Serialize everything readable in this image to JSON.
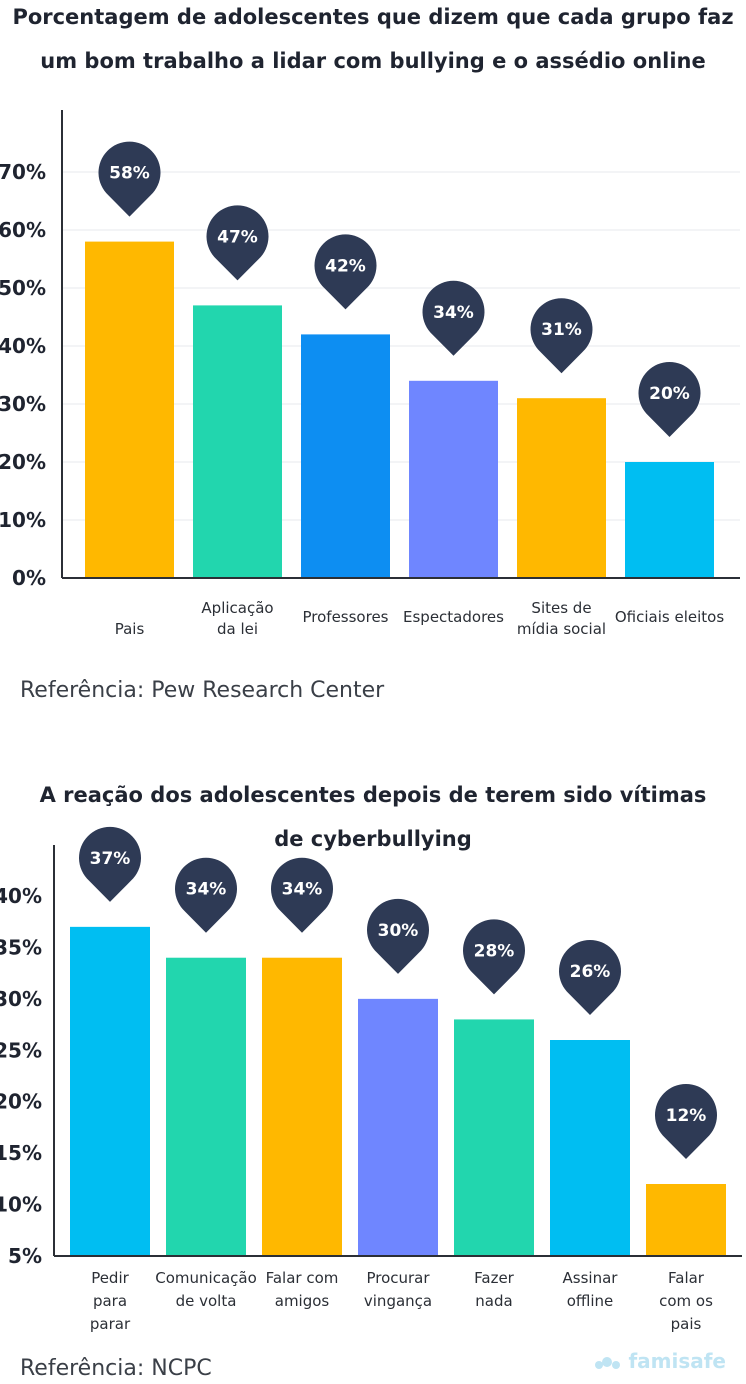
{
  "chart_data": [
    {
      "type": "bar",
      "title": "Porcentagem de adolescentes que dizem que cada grupo faz um bom trabalho a lidar com bullying e o assédio online",
      "title_lines": [
        "Porcentagem de adolescentes que dizem que cada grupo faz",
        "um bom trabalho a lidar com bullying e o assédio online"
      ],
      "categories": [
        "Pais",
        "Aplicação da lei",
        "Professores",
        "Espectadores",
        "Sites de mídia social",
        "Oficiais eleitos"
      ],
      "category_lines": [
        [
          "Pais"
        ],
        [
          "Aplicação",
          "da lei"
        ],
        [
          "Professores"
        ],
        [
          "Espectadores"
        ],
        [
          "Sites de",
          "mídia social"
        ],
        [
          "Oficiais eleitos"
        ]
      ],
      "values": [
        58,
        47,
        42,
        34,
        31,
        20
      ],
      "data_labels": [
        "58%",
        "47%",
        "42%",
        "34%",
        "31%",
        "20%"
      ],
      "colors": [
        "#FFB800",
        "#22D6AE",
        "#0D8EF2",
        "#6F86FF",
        "#FFB800",
        "#00BEF2"
      ],
      "yticks": [
        0,
        10,
        20,
        30,
        40,
        50,
        60,
        70
      ],
      "ytick_labels": [
        "0%",
        "10%",
        "20%",
        "30%",
        "40%",
        "50%",
        "60%",
        "70%"
      ],
      "ylim": [
        0,
        70
      ],
      "grid": true,
      "reference": "Referência: Pew Research Center"
    },
    {
      "type": "bar",
      "title": "A reação dos adolescentes depois de terem sido vítimas de cyberbullying",
      "title_lines": [
        "A reação dos adolescentes depois de terem sido vítimas",
        "de cyberbullying"
      ],
      "categories": [
        "Pedir para parar",
        "Comunicação de volta",
        "Falar com amigos",
        "Procurar vingança",
        "Fazer nada",
        "Assinar offline",
        "Falar com os pais"
      ],
      "category_lines": [
        [
          "Pedir",
          "para",
          "parar"
        ],
        [
          "Comunicação",
          "de volta"
        ],
        [
          "Falar com",
          "amigos"
        ],
        [
          "Procurar",
          "vingança"
        ],
        [
          "Fazer",
          "nada"
        ],
        [
          "Assinar",
          "offline"
        ],
        [
          "Falar",
          "com os",
          "pais"
        ]
      ],
      "values": [
        37,
        34,
        34,
        30,
        28,
        26,
        12
      ],
      "data_labels": [
        "37%",
        "34%",
        "34%",
        "30%",
        "28%",
        "26%",
        "12%"
      ],
      "colors": [
        "#00BEF2",
        "#22D6AE",
        "#FFB800",
        "#6F86FF",
        "#22D6AE",
        "#00BEF2",
        "#FFB800"
      ],
      "yticks": [
        5,
        10,
        15,
        20,
        25,
        30,
        35,
        40
      ],
      "ytick_labels": [
        "5%",
        "10%",
        "15%",
        "20%",
        "25%",
        "30%",
        "35%",
        "40%"
      ],
      "ylim": [
        5,
        40
      ],
      "grid": false,
      "reference": "Referência: NCPC"
    }
  ],
  "pin_color": "#2E3A55",
  "logo_text": "famisafe",
  "logo_color": "#BFE4F3"
}
